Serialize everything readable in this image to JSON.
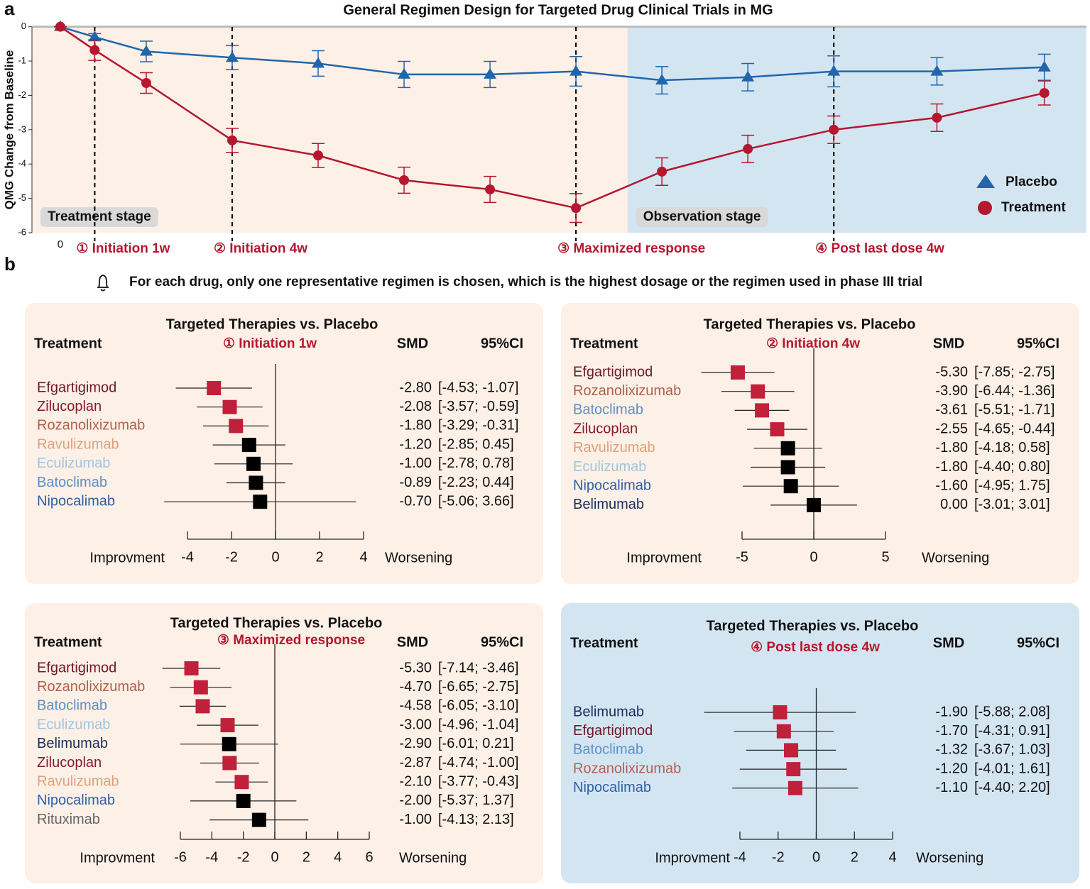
{
  "panel_labels": [
    "a",
    "b"
  ],
  "note": "For each drug, only one representative regimen is chosen, which is the highest dosage or the regimen used in phase III trial",
  "chart_data": [
    {
      "type": "line",
      "title": "General Regimen Design for Targeted Drug Clinical Trials in MG",
      "ylabel": "QMG Change from Baseline",
      "x": [
        0,
        0.4,
        1,
        2,
        3,
        4,
        5,
        6,
        7,
        8,
        9,
        10.2,
        11.45
      ],
      "xlim": [
        -0.33,
        11.94
      ],
      "xticks": [
        {
          "value": 0,
          "label": "0"
        },
        {
          "value": 0.4,
          "label": "① Initiation 1w"
        },
        {
          "value": 2,
          "label": "② Initiation 4w"
        },
        {
          "value": 6,
          "label": "③ Maximized response"
        },
        {
          "value": 9,
          "label": "④ Post last dose 4w"
        }
      ],
      "ylim": [
        -6,
        0.2
      ],
      "yticks": [
        0,
        -1,
        -2,
        -3,
        -4,
        -5,
        -6
      ],
      "hline": 0,
      "reference_lines": [
        0.4,
        2,
        6,
        9
      ],
      "regions": [
        {
          "label": "Treatment stage",
          "from": -0.33,
          "to": 6.6,
          "color": "#fdf0e7"
        },
        {
          "label": "Observation stage",
          "from": 6.6,
          "to": 11.94,
          "color": "#d4e5f2"
        }
      ],
      "legend": "lower right",
      "series": [
        {
          "name": "Placebo",
          "color": "#2166ac",
          "marker": "triangle",
          "values": [
            0,
            -0.3,
            -0.72,
            -0.9,
            -1.07,
            -1.39,
            -1.39,
            -1.3,
            -1.56,
            -1.47,
            -1.3,
            -1.3,
            -1.18
          ],
          "errors": [
            0,
            0.1,
            0.3,
            0.35,
            0.37,
            0.38,
            0.38,
            0.43,
            0.4,
            0.4,
            0.45,
            0.4,
            0.38
          ]
        },
        {
          "name": "Treatment",
          "color": "#b5172f",
          "marker": "circle",
          "values": [
            0,
            -0.68,
            -1.64,
            -3.31,
            -3.75,
            -4.47,
            -4.74,
            -5.28,
            -4.22,
            -3.56,
            -3.0,
            -2.65,
            -1.93
          ],
          "errors": [
            0,
            0.3,
            0.3,
            0.35,
            0.35,
            0.38,
            0.38,
            0.42,
            0.4,
            0.4,
            0.4,
            0.4,
            0.35
          ]
        }
      ]
    },
    {
      "type": "forest",
      "title": "Targeted Therapies vs. Placebo",
      "subtitle": "① Initiation 1w",
      "column_headers": [
        "Treatment",
        "SMD",
        "95%CI"
      ],
      "axis_labels": [
        "Improvment",
        "Worsening"
      ],
      "xlim": [
        -4,
        4
      ],
      "xticks": [
        -4,
        -2,
        0,
        2,
        4
      ],
      "reference_line": 0,
      "background": "#fdf0e7",
      "categories": [
        "Efgartigimod",
        "Zilucoplan",
        "Rozanolixizumab",
        "Ravulizumab",
        "Eculizumab",
        "Batoclimab",
        "Nipocalimab"
      ],
      "category_colors": [
        "#6b1a2a",
        "#8b1a2a",
        "#b5604a",
        "#e0a07a",
        "#9fc5e0",
        "#5b8fc7",
        "#2f5fa8"
      ],
      "values": [
        -2.8,
        -2.08,
        -1.8,
        -1.2,
        -1.0,
        -0.89,
        -0.7
      ],
      "value_labels": [
        "-2.80",
        "-2.08",
        "-1.80",
        "-1.20",
        "-1.00",
        "-0.89",
        "-0.70"
      ],
      "lower": [
        -4.53,
        -3.57,
        -3.29,
        -2.85,
        -2.78,
        -2.23,
        -5.06
      ],
      "upper": [
        -1.07,
        -0.59,
        -0.31,
        0.45,
        0.78,
        0.44,
        3.66
      ],
      "ci_labels": [
        "[-4.53; -1.07]",
        "[-3.57; -0.59]",
        "[-3.29; -0.31]",
        "[-2.85; 0.45]",
        "[-2.78; 0.78]",
        "[-2.23; 0.44]",
        "[-5.06; 3.66]"
      ],
      "marker_colors": [
        "#c0203a",
        "#c0203a",
        "#c0203a",
        "#000000",
        "#000000",
        "#000000",
        "#000000"
      ]
    },
    {
      "type": "forest",
      "title": "Targeted Therapies vs. Placebo",
      "subtitle": "② Initiation 4w",
      "column_headers": [
        "Treatment",
        "SMD",
        "95%CI"
      ],
      "axis_labels": [
        "Improvment",
        "Worsening"
      ],
      "xlim": [
        -5,
        5
      ],
      "xticks": [
        -5,
        0,
        5
      ],
      "reference_line": 0,
      "background": "#fdf0e7",
      "categories": [
        "Efgartigimod",
        "Rozanolixizumab",
        "Batoclimab",
        "Zilucoplan",
        "Ravulizumab",
        "Eculizumab",
        "Nipocalimab",
        "Belimumab"
      ],
      "category_colors": [
        "#6b1a2a",
        "#b5604a",
        "#5b8fc7",
        "#8b1a2a",
        "#e0a07a",
        "#9fc5e0",
        "#2f5fa8",
        "#1a2f5f"
      ],
      "values": [
        -5.3,
        -3.9,
        -3.61,
        -2.55,
        -1.8,
        -1.8,
        -1.6,
        0
      ],
      "value_labels": [
        "-5.30",
        "-3.90",
        "-3.61",
        "-2.55",
        "-1.80",
        "-1.80",
        "-1.60",
        "0.00"
      ],
      "lower": [
        -7.85,
        -6.44,
        -5.51,
        -4.65,
        -4.18,
        -4.4,
        -4.95,
        -3.01
      ],
      "upper": [
        -2.75,
        -1.36,
        -1.71,
        -0.44,
        0.58,
        0.8,
        1.75,
        3.01
      ],
      "ci_labels": [
        "[-7.85; -2.75]",
        "[-6.44; -1.36]",
        "[-5.51; -1.71]",
        "[-4.65; -0.44]",
        "[-4.18; 0.58]",
        "[-4.40; 0.80]",
        "[-4.95; 1.75]",
        "[-3.01; 3.01]"
      ],
      "marker_colors": [
        "#c0203a",
        "#c0203a",
        "#c0203a",
        "#c0203a",
        "#000000",
        "#000000",
        "#000000",
        "#000000"
      ]
    },
    {
      "type": "forest",
      "title": "Targeted Therapies vs. Placebo",
      "subtitle": "③ Maximized response",
      "column_headers": [
        "Treatment",
        "SMD",
        "95%CI"
      ],
      "axis_labels": [
        "Improvment",
        "Worsening"
      ],
      "xlim": [
        -6,
        6
      ],
      "xticks": [
        -6,
        -4,
        -2,
        0,
        2,
        4,
        6
      ],
      "reference_line": 0,
      "background": "#fdf0e7",
      "categories": [
        "Efgartigimod",
        "Rozanolixizumab",
        "Batoclimab",
        "Eculizumab",
        "Belimumab",
        "Zilucoplan",
        "Ravulizumab",
        "Nipocalimab",
        "Rituximab"
      ],
      "category_colors": [
        "#6b1a2a",
        "#b5604a",
        "#5b8fc7",
        "#9fc5e0",
        "#1a2f5f",
        "#8b1a2a",
        "#e0a07a",
        "#2f5fa8",
        "#666666"
      ],
      "values": [
        -5.3,
        -4.7,
        -4.58,
        -3.0,
        -2.9,
        -2.87,
        -2.1,
        -2.0,
        -1.0
      ],
      "value_labels": [
        "-5.30",
        "-4.70",
        "-4.58",
        "-3.00",
        "-2.90",
        "-2.87",
        "-2.10",
        "-2.00",
        "-1.00"
      ],
      "lower": [
        -7.14,
        -6.65,
        -6.05,
        -4.96,
        -6.01,
        -4.74,
        -3.77,
        -5.37,
        -4.13
      ],
      "upper": [
        -3.46,
        -2.75,
        -3.1,
        -1.04,
        0.21,
        -1.0,
        -0.43,
        1.37,
        2.13
      ],
      "ci_labels": [
        "[-7.14; -3.46]",
        "[-6.65; -2.75]",
        "[-6.05; -3.10]",
        "[-4.96; -1.04]",
        "[-6.01; 0.21]",
        "[-4.74; -1.00]",
        "[-3.77; -0.43]",
        "[-5.37; 1.37]",
        "[-4.13; 2.13]"
      ],
      "marker_colors": [
        "#c0203a",
        "#c0203a",
        "#c0203a",
        "#c0203a",
        "#000000",
        "#c0203a",
        "#c0203a",
        "#000000",
        "#000000"
      ]
    },
    {
      "type": "forest",
      "title": "Targeted Therapies vs. Placebo",
      "subtitle": "④ Post last dose 4w",
      "column_headers": [
        "Treatment",
        "SMD",
        "95%CI"
      ],
      "axis_labels": [
        "Improvment",
        "Worsening"
      ],
      "xlim": [
        -4,
        4
      ],
      "xticks": [
        -4,
        -2,
        0,
        2,
        4
      ],
      "reference_line": 0,
      "background": "#d4e5f2",
      "categories": [
        "Belimumab",
        "Efgartigimod",
        "Batoclimab",
        "Rozanolixizumab",
        "Nipocalimab"
      ],
      "category_colors": [
        "#1a2f5f",
        "#6b1a2a",
        "#5b8fc7",
        "#b5604a",
        "#2f5fa8"
      ],
      "values": [
        -1.9,
        -1.7,
        -1.32,
        -1.2,
        -1.1
      ],
      "value_labels": [
        "-1.90",
        "-1.70",
        "-1.32",
        "-1.20",
        "-1.10"
      ],
      "lower": [
        -5.88,
        -4.31,
        -3.67,
        -4.01,
        -4.4
      ],
      "upper": [
        2.08,
        0.91,
        1.03,
        1.61,
        2.2
      ],
      "ci_labels": [
        "[-5.88; 2.08]",
        "[-4.31; 0.91]",
        "[-3.67; 1.03]",
        "[-4.01; 1.61]",
        "[-4.40; 2.20]"
      ],
      "marker_colors": [
        "#c0203a",
        "#c0203a",
        "#c0203a",
        "#c0203a",
        "#c0203a"
      ]
    }
  ]
}
